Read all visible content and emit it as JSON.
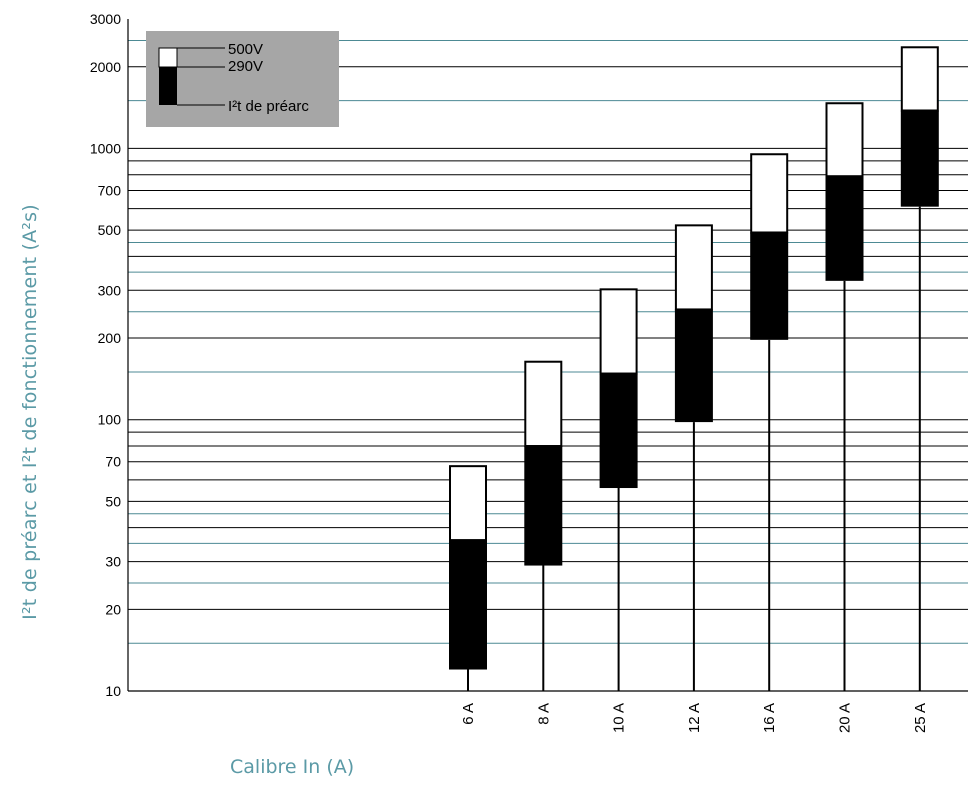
{
  "chart_data": {
    "type": "box",
    "ylabel": "I²t de préarc et I²t de fonctionnement (A²s)",
    "xlabel": "Calibre In (A)",
    "yscale": "log",
    "ylim": [
      10,
      3000
    ],
    "yticks": [
      "10",
      "20",
      "30",
      "50",
      "70",
      "100",
      "200",
      "300",
      "500",
      "700",
      "1000",
      "2000",
      "3000"
    ],
    "categories": [
      "6 A",
      "8 A",
      "10 A",
      "12 A",
      "16 A",
      "20 A",
      "25 A"
    ],
    "series": [
      {
        "name": "I²t de préarc",
        "values": [
          12,
          29,
          56,
          98,
          197,
          325,
          610
        ]
      },
      {
        "name": "290V",
        "values": [
          36,
          80,
          148,
          255,
          490,
          790,
          1380
        ]
      },
      {
        "name": "500V",
        "values": [
          68,
          165,
          305,
          525,
          960,
          1480,
          2380
        ]
      }
    ],
    "legend": {
      "position": "top-left",
      "entries": [
        "500V",
        "290V",
        "I²t de préarc"
      ],
      "background": "#a6a6a6"
    },
    "colors": {
      "upper_box": "#ffffff",
      "lower_box": "#000000",
      "accent_grid": "#4d8a94",
      "axis_title": "#5b9aa6"
    }
  }
}
